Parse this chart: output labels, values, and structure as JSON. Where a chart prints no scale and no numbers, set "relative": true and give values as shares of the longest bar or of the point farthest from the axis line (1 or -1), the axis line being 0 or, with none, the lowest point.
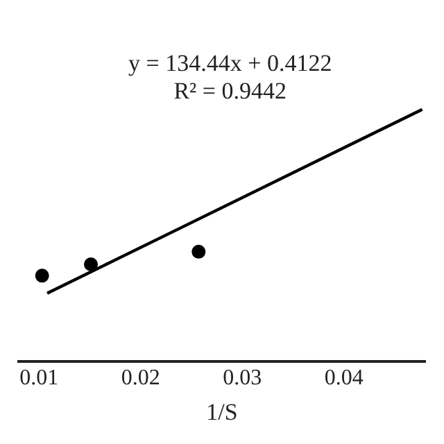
{
  "chart_data": {
    "type": "scatter",
    "relative": true,
    "xlabel": "1/S",
    "annotations": [
      "y = 134.44x + 0.4122",
      "R² = 0.9442"
    ],
    "xlim": [
      0.008,
      0.048
    ],
    "xticks": [
      0.01,
      0.02,
      0.03,
      0.04
    ],
    "tick_labels": "x",
    "marker": "circle",
    "series": [
      {
        "color": "#000000",
        "x": [
          0.0103,
          0.0151,
          0.0257
        ],
        "values": [
          0.34,
          0.385,
          0.435
        ]
      },
      {
        "type": "line",
        "color": "#000000",
        "marker": "none",
        "line_style": "solid",
        "x": [
          0.0108,
          0.0477
        ],
        "values": [
          0.27,
          1.0
        ]
      }
    ]
  }
}
